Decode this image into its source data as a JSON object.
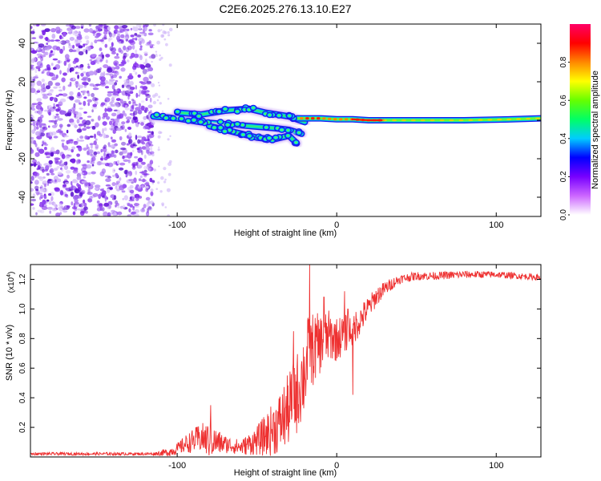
{
  "title": "C2E6.2025.276.13.10.E27",
  "chart_data": [
    {
      "type": "heatmap",
      "name": "spectrogram",
      "title": "C2E6.2025.276.13.10.E27",
      "xlabel": "Height of straight line (km)",
      "ylabel": "Frequency (Hz)",
      "xlim": [
        -192,
        128
      ],
      "ylim": [
        -50,
        50
      ],
      "xticks": [
        -100,
        0,
        100
      ],
      "yticks": [
        -40,
        -20,
        0,
        20,
        40
      ],
      "noise_region_x": [
        -192,
        -115
      ],
      "signal_tracks": [
        {
          "x": [
            -115,
            -100,
            -85,
            -70,
            -55,
            -40,
            -30,
            -22
          ],
          "y": [
            2,
            1,
            -1,
            -2,
            -3,
            -4,
            -5,
            -7
          ]
        },
        {
          "x": [
            -100,
            -85,
            -70,
            -55,
            -45,
            -30,
            -20
          ],
          "y": [
            4,
            3,
            5,
            6,
            4,
            2,
            -1
          ]
        },
        {
          "x": [
            -80,
            -70,
            -60,
            -50,
            -40,
            -30,
            -25
          ],
          "y": [
            -3,
            -5,
            -7,
            -9,
            -10,
            -8,
            -12
          ]
        },
        {
          "x": [
            -25,
            -10,
            0,
            10,
            20,
            30,
            50,
            80,
            110,
            128
          ],
          "y": [
            1,
            1,
            0.5,
            0.5,
            0,
            0,
            0,
            0,
            0.5,
            1
          ]
        }
      ],
      "colorbar": {
        "label": "Normalized spectral amplitude",
        "range": [
          0,
          1
        ],
        "ticks": [
          "0.0",
          "0.2",
          "0.4",
          "0.6",
          "0.8"
        ],
        "colors": [
          "#ffffff",
          "#cc66ff",
          "#7700ff",
          "#0000ff",
          "#00ccff",
          "#00ff66",
          "#66ff00",
          "#ffff00",
          "#ff8800",
          "#ff0000",
          "#ff0066"
        ]
      }
    },
    {
      "type": "line",
      "name": "snr",
      "xlabel": "Height of straight line (km)",
      "ylabel": "SNR (10 * v/v)",
      "y_multiplier": "(x10",
      "y_multiplier_exp": "4",
      "y_multiplier_close": ")",
      "xlim": [
        -192,
        128
      ],
      "ylim": [
        0,
        1.3
      ],
      "xticks": [
        -100,
        0,
        100
      ],
      "yticks": [
        "0.2",
        "0.4",
        "0.6",
        "0.8",
        "1.0",
        "1.2"
      ],
      "color": "#ee3030",
      "trend": {
        "x": [
          -192,
          -140,
          -115,
          -105,
          -100,
          -95,
          -90,
          -85,
          -80,
          -75,
          -70,
          -65,
          -60,
          -55,
          -50,
          -45,
          -40,
          -35,
          -30,
          -25,
          -20,
          -18,
          -15,
          -10,
          -5,
          0,
          5,
          10,
          15,
          20,
          25,
          30,
          35,
          40,
          50,
          60,
          80,
          100,
          115,
          128
        ],
        "y": [
          0.02,
          0.02,
          0.02,
          0.03,
          0.05,
          0.08,
          0.1,
          0.12,
          0.1,
          0.09,
          0.08,
          0.07,
          0.06,
          0.08,
          0.1,
          0.13,
          0.17,
          0.22,
          0.3,
          0.4,
          0.55,
          0.65,
          0.7,
          0.75,
          0.8,
          0.78,
          0.82,
          0.85,
          0.92,
          1.0,
          1.08,
          1.13,
          1.17,
          1.2,
          1.22,
          1.22,
          1.23,
          1.23,
          1.22,
          1.21
        ]
      },
      "noise_amp": {
        "x": [
          -192,
          -115,
          -100,
          -90,
          -80,
          -70,
          -60,
          -50,
          -40,
          -30,
          -20,
          -10,
          0,
          10,
          20,
          30,
          40,
          128
        ],
        "y": [
          0.01,
          0.01,
          0.04,
          0.08,
          0.12,
          0.06,
          0.05,
          0.1,
          0.18,
          0.25,
          0.3,
          0.2,
          0.15,
          0.12,
          0.08,
          0.05,
          0.03,
          0.02
        ]
      },
      "spikes": [
        {
          "x": -79,
          "y": 0.35
        },
        {
          "x": -27,
          "y": 0.85
        },
        {
          "x": -17,
          "y": 1.3
        },
        {
          "x": -8,
          "y": 1.08
        },
        {
          "x": 5,
          "y": 1.12
        },
        {
          "x": 7,
          "y": 1.0
        },
        {
          "x": 10,
          "y": 0.42
        }
      ]
    }
  ]
}
